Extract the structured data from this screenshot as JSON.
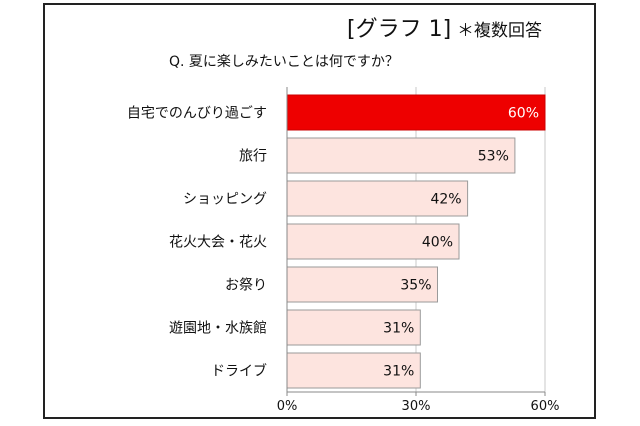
{
  "chart_data": {
    "type": "bar",
    "orientation": "horizontal",
    "title": "[グラフ 1]",
    "note": "＊複数回答",
    "subtitle": "Q. 夏に楽しみたいことは何ですか？",
    "categories": [
      "自宅でのんびり過ごす",
      "旅行",
      "ショッピング",
      "花火大会・花火",
      "お祭り",
      "遊園地・水族館",
      "ドライブ"
    ],
    "values": [
      60,
      53,
      42,
      40,
      35,
      31,
      31
    ],
    "value_labels": [
      "60%",
      "53%",
      "42%",
      "40%",
      "35%",
      "31%",
      "31%"
    ],
    "xlim": [
      0,
      60
    ],
    "x_ticks": [
      "0%",
      "30%",
      "60%"
    ],
    "grid": "vertical at 30%, 60%",
    "colors": {
      "highlight_fill": "#ee0000",
      "highlight_stroke": "#cc0000",
      "bar_fill": "#fde4df",
      "bar_stroke": "#9a9a9a",
      "highlight_label": "#ffffff",
      "bar_label": "#111111"
    }
  }
}
